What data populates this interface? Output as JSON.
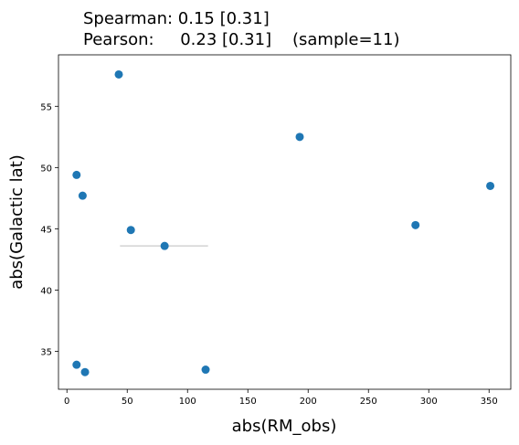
{
  "chart_data": {
    "type": "scatter",
    "title_line1": "Spearman: 0.15 [0.31]",
    "title_line2": "Pearson:     0.23 [0.31]    (sample=11)",
    "xlabel": "abs(RM_obs)",
    "ylabel": "abs(Galactic lat)",
    "xlim": [
      -7,
      368
    ],
    "ylim": [
      31.9,
      59.2
    ],
    "xticks": [
      0,
      50,
      100,
      150,
      200,
      250,
      300,
      350
    ],
    "yticks": [
      35,
      40,
      45,
      50,
      55
    ],
    "grid": false,
    "marker_color": "#1f77b4",
    "errorbar_color": "#d3d3d3",
    "points": [
      {
        "x": 43,
        "y": 57.6
      },
      {
        "x": 193,
        "y": 52.5
      },
      {
        "x": 351,
        "y": 48.5
      },
      {
        "x": 8,
        "y": 49.4
      },
      {
        "x": 13,
        "y": 47.7
      },
      {
        "x": 289,
        "y": 45.3
      },
      {
        "x": 53,
        "y": 44.9
      },
      {
        "x": 81,
        "y": 43.6
      },
      {
        "x": 8,
        "y": 33.9
      },
      {
        "x": 15,
        "y": 33.3
      },
      {
        "x": 115,
        "y": 33.5
      }
    ],
    "errorbars": [
      {
        "x": 81,
        "y": 43.6,
        "xmin": 44,
        "xmax": 117
      }
    ]
  }
}
